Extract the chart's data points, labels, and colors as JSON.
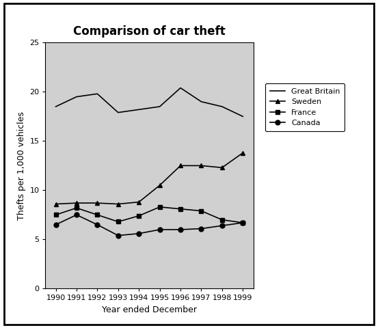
{
  "title": "Comparison of car theft",
  "xlabel": "Year ended December",
  "ylabel": "Thefts per 1,000 vehicles",
  "years": [
    1990,
    1991,
    1992,
    1993,
    1994,
    1995,
    1996,
    1997,
    1998,
    1999
  ],
  "great_britain": [
    18.5,
    19.5,
    19.8,
    17.9,
    18.2,
    18.5,
    20.4,
    19.0,
    18.5,
    17.5
  ],
  "sweden": [
    8.6,
    8.7,
    8.7,
    8.6,
    8.8,
    10.5,
    12.5,
    12.5,
    12.3,
    13.8
  ],
  "france": [
    7.5,
    8.2,
    7.5,
    6.8,
    7.4,
    8.3,
    8.1,
    7.9,
    7.0,
    6.7
  ],
  "canada": [
    6.5,
    7.5,
    6.5,
    5.4,
    5.6,
    6.0,
    6.0,
    6.1,
    6.4,
    6.7
  ],
  "ylim": [
    0,
    25
  ],
  "bg_color": "#d0d0d0",
  "outer_bg": "#ffffff",
  "line_color": "#000000",
  "legend_labels": [
    "Great Britain",
    "Sweden",
    "France",
    "Canada"
  ],
  "title_fontsize": 12,
  "label_fontsize": 9,
  "tick_fontsize": 8
}
